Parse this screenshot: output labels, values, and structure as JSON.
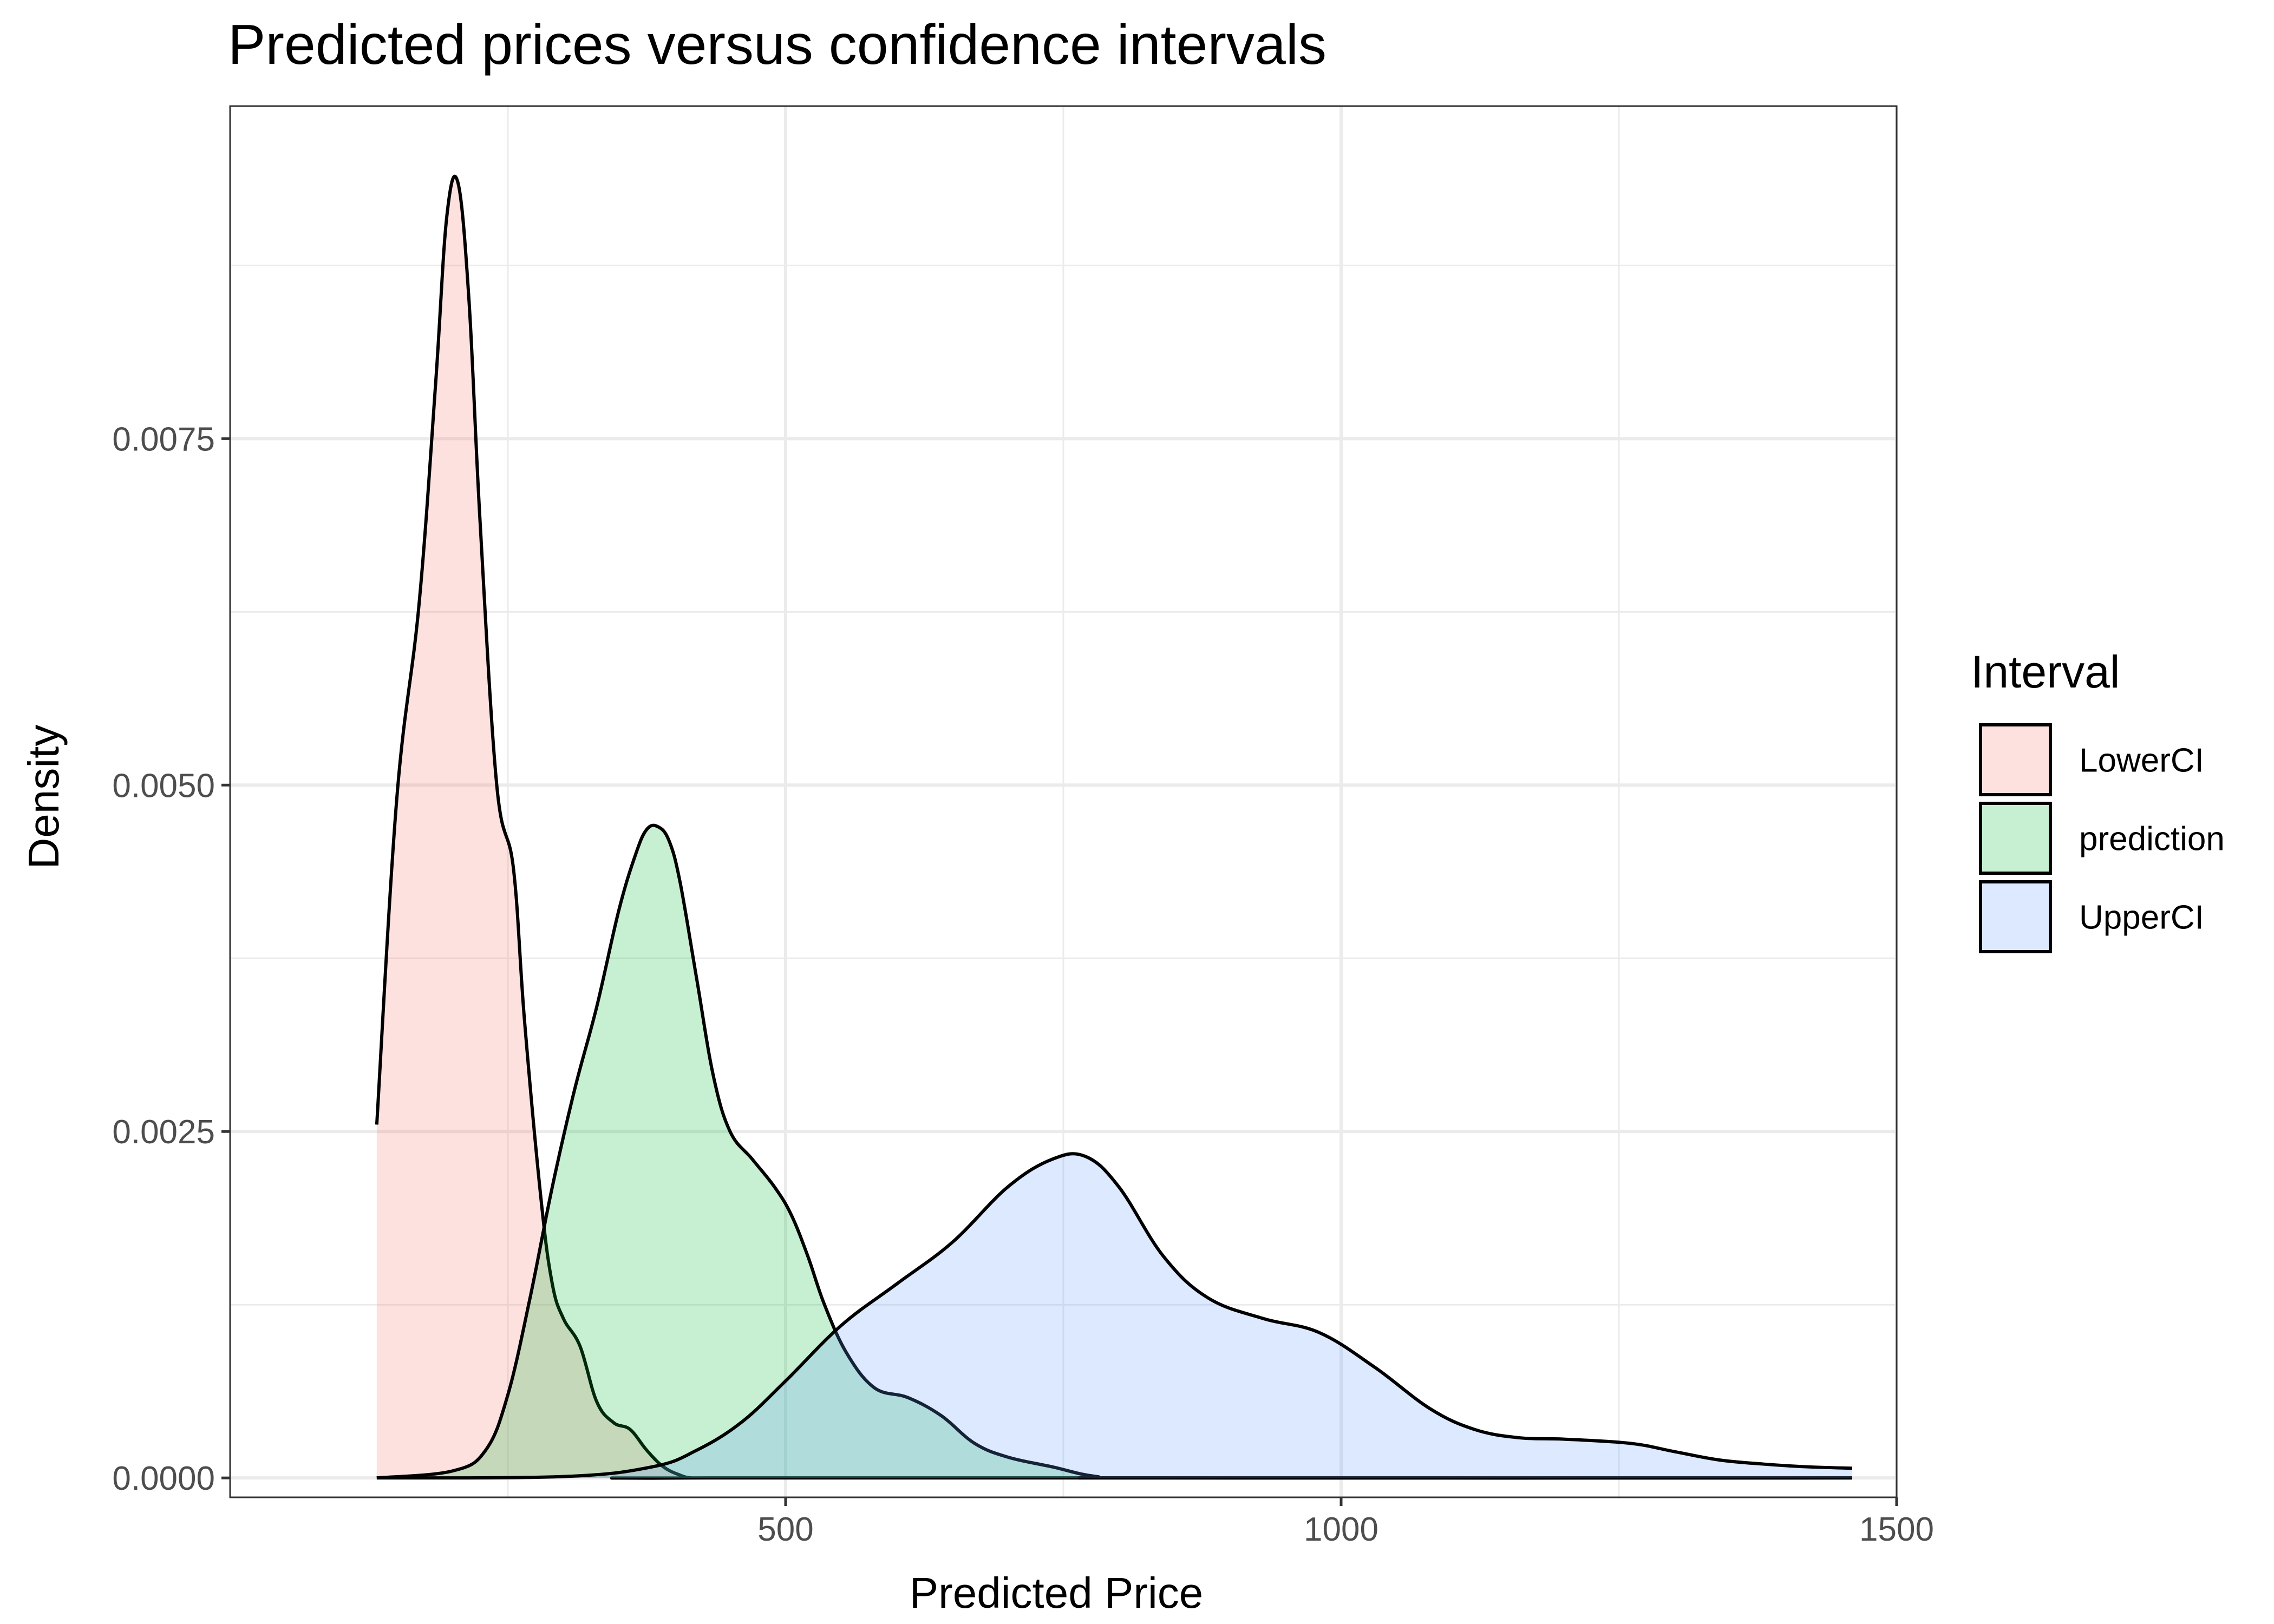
{
  "chart_data": {
    "type": "area",
    "title": "Predicted prices versus confidence intervals",
    "xlabel": "Predicted Price",
    "ylabel": "Density",
    "xlim": [
      0,
      1500
    ],
    "ylim": [
      -0.00014,
      0.0099
    ],
    "x_ticks": [
      500,
      1000,
      1500
    ],
    "x_tick_labels": [
      "500",
      "1000",
      "1500"
    ],
    "y_ticks": [
      0,
      0.0025,
      0.005,
      0.0075
    ],
    "y_tick_labels": [
      "0.0000",
      "0.0025",
      "0.0050",
      "0.0075"
    ],
    "x_minor_ticks": [
      250,
      750,
      1250
    ],
    "y_minor_ticks": [
      0.00125,
      0.00375,
      0.00625,
      0.00875
    ],
    "grid": true,
    "legend": {
      "title": "Interval",
      "position": "right"
    },
    "colors": {
      "LowerCI": "#F8766D",
      "prediction": "#00BA38",
      "UpperCI": "#619CFF",
      "outline": "#000000",
      "grid": "#ebebeb"
    },
    "series": [
      {
        "name": "LowerCI",
        "x": [
          132,
          150,
          170,
          185,
          195,
          205,
          215,
          225,
          240,
          255,
          265,
          280,
          290,
          300,
          315,
          330,
          345,
          360,
          375,
          390,
          405,
          415,
          430,
          1460
        ],
        "values": [
          0.00255,
          0.0049,
          0.0063,
          0.0079,
          0.0091,
          0.00935,
          0.0085,
          0.0069,
          0.005,
          0.0044,
          0.0033,
          0.002,
          0.0014,
          0.00115,
          0.00095,
          0.00055,
          0.0004,
          0.00035,
          0.0002,
          8e-05,
          2e-05,
          0.0,
          0.0,
          0.0
        ]
      },
      {
        "name": "prediction",
        "x": [
          132,
          200,
          230,
          250,
          270,
          290,
          310,
          330,
          350,
          365,
          375,
          385,
          395,
          405,
          420,
          435,
          450,
          470,
          490,
          505,
          520,
          535,
          555,
          580,
          610,
          640,
          670,
          700,
          740,
          780,
          830,
          1460
        ],
        "values": [
          0.0,
          5e-05,
          0.0002,
          0.0006,
          0.0013,
          0.0021,
          0.0028,
          0.0034,
          0.0041,
          0.0045,
          0.00468,
          0.0047,
          0.0046,
          0.0043,
          0.0036,
          0.0029,
          0.0025,
          0.0023,
          0.0021,
          0.0019,
          0.0016,
          0.00125,
          0.0009,
          0.00065,
          0.00058,
          0.00045,
          0.00025,
          0.00015,
          8e-05,
          1e-05,
          0.0,
          0.0
        ]
      },
      {
        "name": "UpperCI",
        "x": [
          132,
          300,
          380,
          420,
          460,
          500,
          550,
          600,
          650,
          700,
          740,
          770,
          800,
          840,
          880,
          930,
          980,
          1030,
          1080,
          1120,
          1160,
          1200,
          1260,
          1300,
          1340,
          1380,
          1420,
          1460
        ],
        "values": [
          0.0,
          1e-05,
          8e-05,
          0.0002,
          0.0004,
          0.0007,
          0.0011,
          0.0014,
          0.0017,
          0.0021,
          0.0023,
          0.00232,
          0.0021,
          0.0016,
          0.0013,
          0.00115,
          0.00105,
          0.0008,
          0.0005,
          0.00035,
          0.00029,
          0.00028,
          0.00025,
          0.00019,
          0.00013,
          0.0001,
          8e-05,
          7e-05
        ]
      }
    ]
  }
}
